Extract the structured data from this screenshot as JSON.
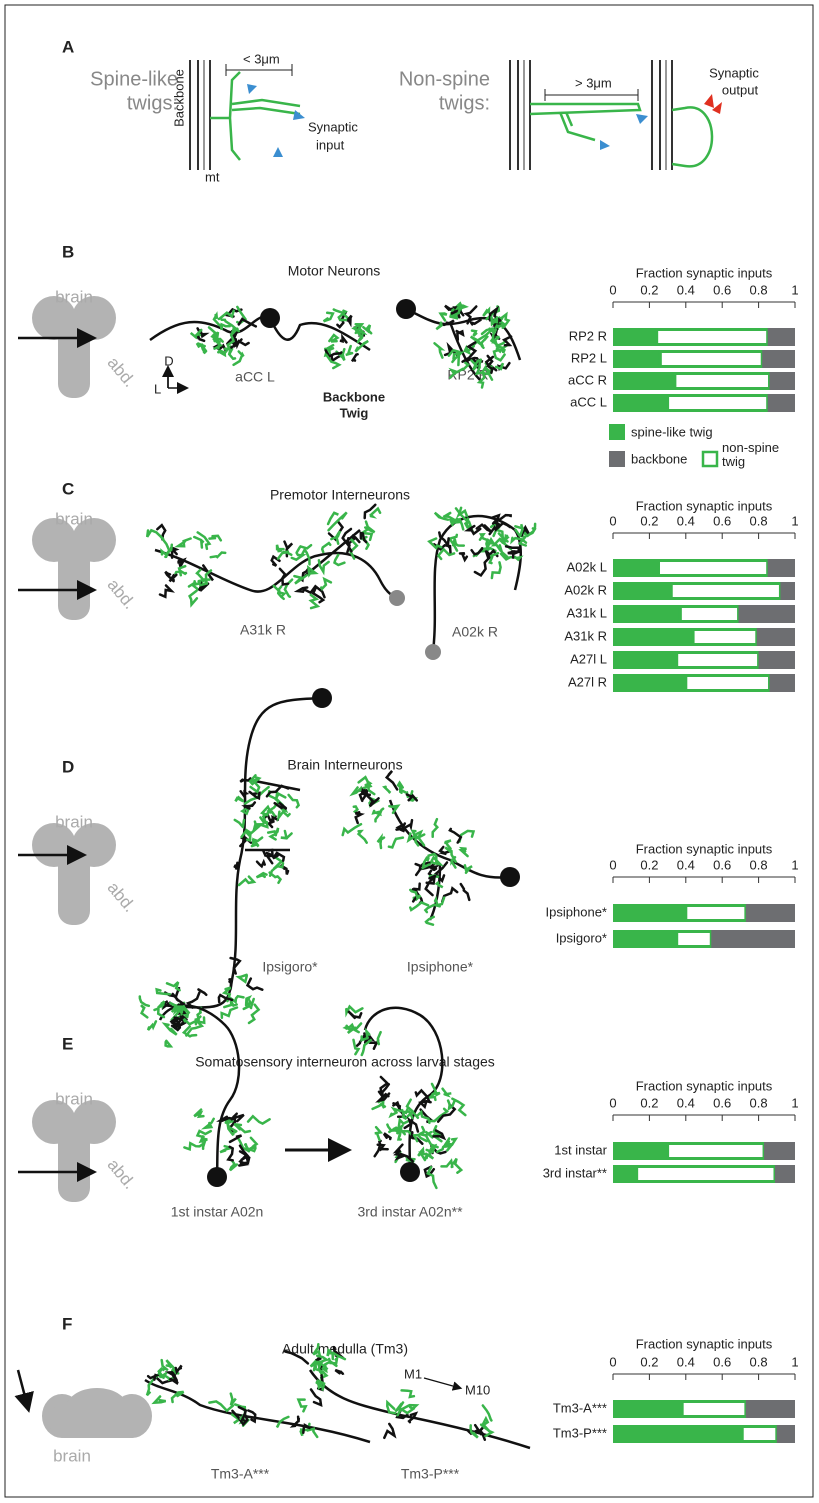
{
  "panel_a": {
    "letter": "A",
    "spine_label": [
      "Spine-like",
      "twigs:"
    ],
    "backbone": "Backbone",
    "mt": "mt",
    "short": "< 3μm",
    "input": [
      "Synaptic",
      "input"
    ],
    "nonspine_label": [
      "Non-spine",
      "twigs:"
    ],
    "long": "> 3μm",
    "output": [
      "Synaptic",
      "output"
    ]
  },
  "panels": [
    {
      "letter": "B",
      "title": "Motor Neurons",
      "brain": "brain",
      "abd": "abd.",
      "neurons": [
        "aCC L",
        "RP2 R"
      ],
      "axes": [
        "D",
        "L"
      ],
      "key": [
        "Backbone",
        "Twig"
      ]
    },
    {
      "letter": "C",
      "title": "Premotor Interneurons",
      "brain": "brain",
      "abd": "abd.",
      "neurons": [
        "A31k R",
        "A02k R"
      ]
    },
    {
      "letter": "D",
      "title": "Brain Interneurons",
      "brain": "brain",
      "abd": "abd.",
      "neurons": [
        "Ipsigoro*",
        "Ipsiphone*"
      ]
    },
    {
      "letter": "E",
      "title": "Somatosensory interneuron across larval stages",
      "brain": "brain",
      "abd": "abd.",
      "neurons": [
        "1st instar A02n",
        "3rd instar A02n**"
      ]
    },
    {
      "letter": "F",
      "title": "Adult medulla (Tm3)",
      "brain": "brain",
      "neurons": [
        "Tm3-A***",
        "Tm3-P***"
      ],
      "layers": [
        "M1",
        "M10"
      ]
    }
  ],
  "chart_data": [
    {
      "type": "bar",
      "orientation": "horizontal",
      "stacked": true,
      "title": "Fraction synaptic inputs",
      "xlim": [
        0,
        1
      ],
      "xticks": [
        0,
        0.2,
        0.4,
        0.6,
        0.8,
        1
      ],
      "legend": true,
      "categories": [
        "RP2 R",
        "RP2 L",
        "aCC R",
        "aCC L"
      ],
      "series": [
        {
          "name": "spine-like twig",
          "color": "#39b54a",
          "values": [
            0.24,
            0.26,
            0.34,
            0.3
          ]
        },
        {
          "name": "non-spine twig",
          "color": "#ffffff",
          "edgecolor": "#39b54a",
          "values": [
            0.61,
            0.56,
            0.52,
            0.55
          ]
        },
        {
          "name": "backbone",
          "color": "#6d6e71",
          "values": [
            0.15,
            0.18,
            0.14,
            0.15
          ]
        }
      ]
    },
    {
      "type": "bar",
      "orientation": "horizontal",
      "stacked": true,
      "title": "Fraction synaptic inputs",
      "xlim": [
        0,
        1
      ],
      "xticks": [
        0,
        0.2,
        0.4,
        0.6,
        0.8,
        1
      ],
      "categories": [
        "A02k L",
        "A02k R",
        "A31k L",
        "A31k R",
        "A27l L",
        "A27l R"
      ],
      "series": [
        {
          "color": "#39b54a",
          "values": [
            0.25,
            0.32,
            0.37,
            0.44,
            0.35,
            0.4
          ]
        },
        {
          "color": "#ffffff",
          "edgecolor": "#39b54a",
          "values": [
            0.6,
            0.6,
            0.32,
            0.35,
            0.45,
            0.46
          ]
        },
        {
          "color": "#6d6e71",
          "values": [
            0.15,
            0.08,
            0.31,
            0.21,
            0.2,
            0.14
          ]
        }
      ]
    },
    {
      "type": "bar",
      "orientation": "horizontal",
      "stacked": true,
      "title": "Fraction synaptic inputs",
      "xlim": [
        0,
        1
      ],
      "xticks": [
        0,
        0.2,
        0.4,
        0.6,
        0.8,
        1
      ],
      "categories": [
        "Ipsiphone*",
        "Ipsigoro*"
      ],
      "series": [
        {
          "color": "#39b54a",
          "values": [
            0.4,
            0.35
          ]
        },
        {
          "color": "#ffffff",
          "edgecolor": "#39b54a",
          "values": [
            0.33,
            0.19
          ]
        },
        {
          "color": "#6d6e71",
          "values": [
            0.27,
            0.46
          ]
        }
      ]
    },
    {
      "type": "bar",
      "orientation": "horizontal",
      "stacked": true,
      "title": "Fraction synaptic inputs",
      "xlim": [
        0,
        1
      ],
      "xticks": [
        0,
        0.2,
        0.4,
        0.6,
        0.8,
        1
      ],
      "categories": [
        "1st instar",
        "3rd instar**"
      ],
      "series": [
        {
          "color": "#39b54a",
          "values": [
            0.3,
            0.13
          ]
        },
        {
          "color": "#ffffff",
          "edgecolor": "#39b54a",
          "values": [
            0.53,
            0.76
          ]
        },
        {
          "color": "#6d6e71",
          "values": [
            0.17,
            0.11
          ]
        }
      ]
    },
    {
      "type": "bar",
      "orientation": "horizontal",
      "stacked": true,
      "title": "Fraction synaptic inputs",
      "xlim": [
        0,
        1
      ],
      "xticks": [
        0,
        0.2,
        0.4,
        0.6,
        0.8,
        1
      ],
      "categories": [
        "Tm3-A***",
        "Tm3-P***"
      ],
      "series": [
        {
          "color": "#39b54a",
          "values": [
            0.38,
            0.71
          ]
        },
        {
          "color": "#ffffff",
          "edgecolor": "#39b54a",
          "values": [
            0.35,
            0.19
          ]
        },
        {
          "color": "#6d6e71",
          "values": [
            0.27,
            0.1
          ]
        }
      ]
    }
  ]
}
